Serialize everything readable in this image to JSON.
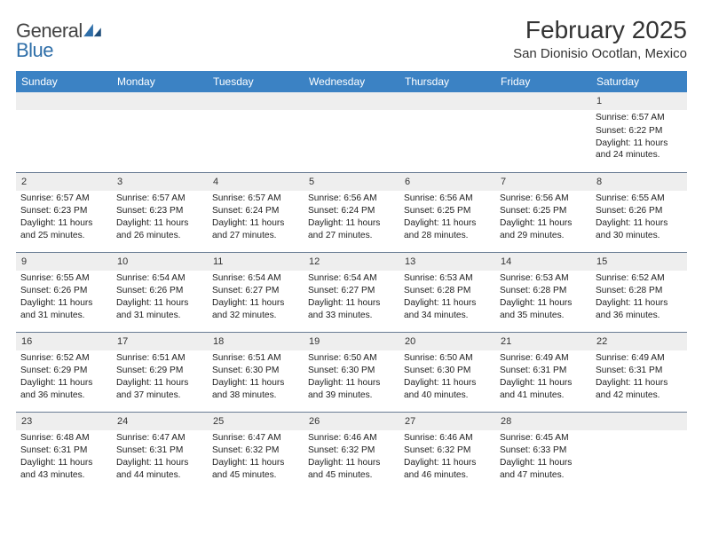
{
  "brand": {
    "word1": "General",
    "word2": "Blue"
  },
  "title": "February 2025",
  "location": "San Dionisio Ocotlan, Mexico",
  "colors": {
    "header_bg": "#3b82c4",
    "daynum_bg": "#eeeeee",
    "row_border": "#6a7d94",
    "brand_blue": "#2f6fa9"
  },
  "weekdays": [
    "Sunday",
    "Monday",
    "Tuesday",
    "Wednesday",
    "Thursday",
    "Friday",
    "Saturday"
  ],
  "weeks": [
    [
      null,
      null,
      null,
      null,
      null,
      null,
      {
        "n": "1",
        "sr": "Sunrise: 6:57 AM",
        "ss": "Sunset: 6:22 PM",
        "dl": "Daylight: 11 hours and 24 minutes."
      }
    ],
    [
      {
        "n": "2",
        "sr": "Sunrise: 6:57 AM",
        "ss": "Sunset: 6:23 PM",
        "dl": "Daylight: 11 hours and 25 minutes."
      },
      {
        "n": "3",
        "sr": "Sunrise: 6:57 AM",
        "ss": "Sunset: 6:23 PM",
        "dl": "Daylight: 11 hours and 26 minutes."
      },
      {
        "n": "4",
        "sr": "Sunrise: 6:57 AM",
        "ss": "Sunset: 6:24 PM",
        "dl": "Daylight: 11 hours and 27 minutes."
      },
      {
        "n": "5",
        "sr": "Sunrise: 6:56 AM",
        "ss": "Sunset: 6:24 PM",
        "dl": "Daylight: 11 hours and 27 minutes."
      },
      {
        "n": "6",
        "sr": "Sunrise: 6:56 AM",
        "ss": "Sunset: 6:25 PM",
        "dl": "Daylight: 11 hours and 28 minutes."
      },
      {
        "n": "7",
        "sr": "Sunrise: 6:56 AM",
        "ss": "Sunset: 6:25 PM",
        "dl": "Daylight: 11 hours and 29 minutes."
      },
      {
        "n": "8",
        "sr": "Sunrise: 6:55 AM",
        "ss": "Sunset: 6:26 PM",
        "dl": "Daylight: 11 hours and 30 minutes."
      }
    ],
    [
      {
        "n": "9",
        "sr": "Sunrise: 6:55 AM",
        "ss": "Sunset: 6:26 PM",
        "dl": "Daylight: 11 hours and 31 minutes."
      },
      {
        "n": "10",
        "sr": "Sunrise: 6:54 AM",
        "ss": "Sunset: 6:26 PM",
        "dl": "Daylight: 11 hours and 31 minutes."
      },
      {
        "n": "11",
        "sr": "Sunrise: 6:54 AM",
        "ss": "Sunset: 6:27 PM",
        "dl": "Daylight: 11 hours and 32 minutes."
      },
      {
        "n": "12",
        "sr": "Sunrise: 6:54 AM",
        "ss": "Sunset: 6:27 PM",
        "dl": "Daylight: 11 hours and 33 minutes."
      },
      {
        "n": "13",
        "sr": "Sunrise: 6:53 AM",
        "ss": "Sunset: 6:28 PM",
        "dl": "Daylight: 11 hours and 34 minutes."
      },
      {
        "n": "14",
        "sr": "Sunrise: 6:53 AM",
        "ss": "Sunset: 6:28 PM",
        "dl": "Daylight: 11 hours and 35 minutes."
      },
      {
        "n": "15",
        "sr": "Sunrise: 6:52 AM",
        "ss": "Sunset: 6:28 PM",
        "dl": "Daylight: 11 hours and 36 minutes."
      }
    ],
    [
      {
        "n": "16",
        "sr": "Sunrise: 6:52 AM",
        "ss": "Sunset: 6:29 PM",
        "dl": "Daylight: 11 hours and 36 minutes."
      },
      {
        "n": "17",
        "sr": "Sunrise: 6:51 AM",
        "ss": "Sunset: 6:29 PM",
        "dl": "Daylight: 11 hours and 37 minutes."
      },
      {
        "n": "18",
        "sr": "Sunrise: 6:51 AM",
        "ss": "Sunset: 6:30 PM",
        "dl": "Daylight: 11 hours and 38 minutes."
      },
      {
        "n": "19",
        "sr": "Sunrise: 6:50 AM",
        "ss": "Sunset: 6:30 PM",
        "dl": "Daylight: 11 hours and 39 minutes."
      },
      {
        "n": "20",
        "sr": "Sunrise: 6:50 AM",
        "ss": "Sunset: 6:30 PM",
        "dl": "Daylight: 11 hours and 40 minutes."
      },
      {
        "n": "21",
        "sr": "Sunrise: 6:49 AM",
        "ss": "Sunset: 6:31 PM",
        "dl": "Daylight: 11 hours and 41 minutes."
      },
      {
        "n": "22",
        "sr": "Sunrise: 6:49 AM",
        "ss": "Sunset: 6:31 PM",
        "dl": "Daylight: 11 hours and 42 minutes."
      }
    ],
    [
      {
        "n": "23",
        "sr": "Sunrise: 6:48 AM",
        "ss": "Sunset: 6:31 PM",
        "dl": "Daylight: 11 hours and 43 minutes."
      },
      {
        "n": "24",
        "sr": "Sunrise: 6:47 AM",
        "ss": "Sunset: 6:31 PM",
        "dl": "Daylight: 11 hours and 44 minutes."
      },
      {
        "n": "25",
        "sr": "Sunrise: 6:47 AM",
        "ss": "Sunset: 6:32 PM",
        "dl": "Daylight: 11 hours and 45 minutes."
      },
      {
        "n": "26",
        "sr": "Sunrise: 6:46 AM",
        "ss": "Sunset: 6:32 PM",
        "dl": "Daylight: 11 hours and 45 minutes."
      },
      {
        "n": "27",
        "sr": "Sunrise: 6:46 AM",
        "ss": "Sunset: 6:32 PM",
        "dl": "Daylight: 11 hours and 46 minutes."
      },
      {
        "n": "28",
        "sr": "Sunrise: 6:45 AM",
        "ss": "Sunset: 6:33 PM",
        "dl": "Daylight: 11 hours and 47 minutes."
      },
      null
    ]
  ]
}
